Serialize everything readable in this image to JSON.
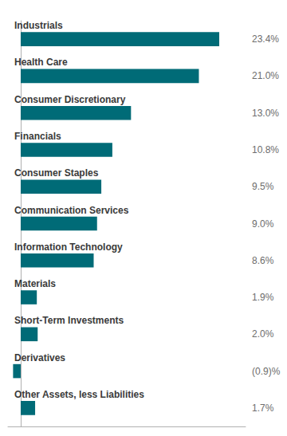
{
  "chart_data": {
    "type": "bar",
    "orientation": "horizontal",
    "categories": [
      "Industrials",
      "Health Care",
      "Consumer Discretionary",
      "Financials",
      "Consumer Staples",
      "Communication Services",
      "Information Technology",
      "Materials",
      "Short-Term Investments",
      "Derivatives",
      "Other Assets, less Liabilities"
    ],
    "values": [
      23.4,
      21.0,
      13.0,
      10.8,
      9.5,
      9.0,
      8.6,
      1.9,
      2.0,
      -0.9,
      1.7
    ],
    "value_labels": [
      "23.4%",
      "21.0%",
      "13.0%",
      "10.8%",
      "9.5%",
      "9.0%",
      "8.6%",
      "1.9%",
      "2.0%",
      "(0.9)%",
      "1.7%"
    ],
    "color": "#006b77",
    "xlim": [
      -1.5,
      26.5
    ],
    "grid": false,
    "data_labels": true,
    "tick_labels": "y"
  }
}
